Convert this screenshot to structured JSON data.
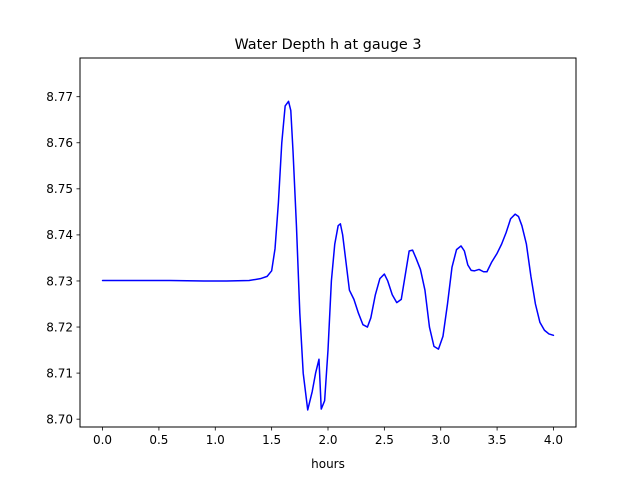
{
  "chart_data": {
    "type": "line",
    "title": "Water Depth h at gauge 3",
    "xlabel": "hours",
    "ylabel": "",
    "xlim": [
      -0.2,
      4.2
    ],
    "ylim": [
      8.6983,
      8.7784
    ],
    "xticks": [
      0.0,
      0.5,
      1.0,
      1.5,
      2.0,
      2.5,
      3.0,
      3.5,
      4.0
    ],
    "xtick_labels": [
      "0.0",
      "0.5",
      "1.0",
      "1.5",
      "2.0",
      "2.5",
      "3.0",
      "3.5",
      "4.0"
    ],
    "yticks": [
      8.7,
      8.71,
      8.72,
      8.73,
      8.74,
      8.75,
      8.76,
      8.77
    ],
    "ytick_labels": [
      "8.70",
      "8.71",
      "8.72",
      "8.73",
      "8.74",
      "8.75",
      "8.76",
      "8.77"
    ],
    "grid": false,
    "legend": false,
    "series": [
      {
        "color": "#0000ff",
        "x": [
          0.0,
          0.3,
          0.6,
          0.9,
          1.1,
          1.3,
          1.4,
          1.46,
          1.5,
          1.53,
          1.56,
          1.59,
          1.62,
          1.65,
          1.67,
          1.69,
          1.72,
          1.75,
          1.78,
          1.82,
          1.86,
          1.89,
          1.92,
          1.94,
          1.97,
          2.0,
          2.03,
          2.06,
          2.09,
          2.11,
          2.13,
          2.16,
          2.19,
          2.23,
          2.27,
          2.31,
          2.35,
          2.38,
          2.42,
          2.46,
          2.5,
          2.53,
          2.57,
          2.61,
          2.65,
          2.69,
          2.72,
          2.75,
          2.78,
          2.82,
          2.86,
          2.9,
          2.94,
          2.98,
          3.02,
          3.06,
          3.1,
          3.14,
          3.18,
          3.21,
          3.24,
          3.27,
          3.3,
          3.34,
          3.38,
          3.41,
          3.45,
          3.5,
          3.54,
          3.58,
          3.62,
          3.66,
          3.69,
          3.72,
          3.76,
          3.8,
          3.84,
          3.88,
          3.92,
          3.96,
          4.0
        ],
        "y": [
          8.7301,
          8.7301,
          8.7301,
          8.73,
          8.73,
          8.7301,
          8.7305,
          8.731,
          8.7322,
          8.737,
          8.747,
          8.76,
          8.768,
          8.769,
          8.767,
          8.758,
          8.742,
          8.723,
          8.71,
          8.702,
          8.706,
          8.71,
          8.713,
          8.7022,
          8.704,
          8.715,
          8.73,
          8.738,
          8.742,
          8.7424,
          8.74,
          8.734,
          8.728,
          8.726,
          8.723,
          8.7205,
          8.72,
          8.722,
          8.727,
          8.7305,
          8.7315,
          8.73,
          8.727,
          8.7253,
          8.726,
          8.732,
          8.7365,
          8.7367,
          8.735,
          8.7325,
          8.728,
          8.72,
          8.7158,
          8.7152,
          8.718,
          8.725,
          8.733,
          8.7368,
          8.7376,
          8.7365,
          8.7335,
          8.7323,
          8.7322,
          8.7325,
          8.732,
          8.732,
          8.734,
          8.736,
          8.738,
          8.7405,
          8.7435,
          8.7445,
          8.744,
          8.742,
          8.738,
          8.731,
          8.725,
          8.721,
          8.7193,
          8.7185,
          8.7182
        ]
      }
    ]
  }
}
